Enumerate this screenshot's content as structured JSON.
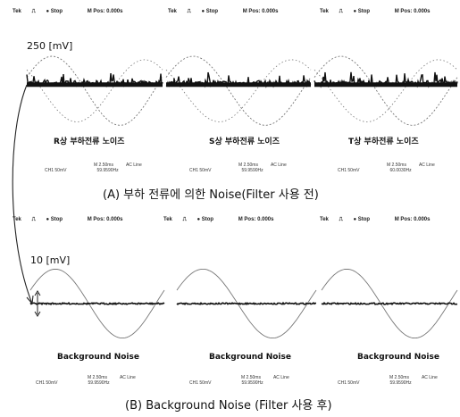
{
  "top": {
    "scale_label": "250 [mV]",
    "caption": "(A) 부하 전류에 의한 Noise(Filter 사용 전)",
    "panels": [
      {
        "header": {
          "tek": "Tek",
          "mode": "Stop",
          "pos": "M Pos: 0.000s"
        },
        "label": "R상 부하전류 노이즈",
        "footer": {
          "source": "CH1 50mV",
          "time": "M 2.50ms",
          "coupling": "AC Line",
          "extra": "59.9590Hz"
        }
      },
      {
        "header": {
          "tek": "Tek",
          "mode": "Stop",
          "pos": "M Pos: 0.000s"
        },
        "label": "S상 부하전류 노이즈",
        "footer": {
          "source": "CH1 50mV",
          "time": "M 2.50ms",
          "coupling": "AC Line",
          "extra": "59.9590Hz"
        }
      },
      {
        "header": {
          "tek": "Tek",
          "mode": "Stop",
          "pos": "M Pos: 0.000s"
        },
        "label": "T상 부하전류 노이즈",
        "footer": {
          "source": "CH1 50mV",
          "time": "M 2.50ms",
          "coupling": "AC Line",
          "extra": "60.0030Hz"
        }
      }
    ]
  },
  "bottom": {
    "scale_label": "10 [mV]",
    "caption": "(B) Background Noise (Filter 사용 후)",
    "panels": [
      {
        "header": {
          "tek": "Tek",
          "mode": "Stop",
          "pos": "M Pos: 0.000s"
        },
        "label": "Background Noise",
        "footer": {
          "source": "CH1 50mV",
          "time": "M 2.50ms",
          "coupling": "AC Line",
          "extra": "59.9590Hz"
        }
      },
      {
        "header": {
          "tek": "Tek",
          "mode": "Stop",
          "pos": "M Pos: 0.000s"
        },
        "label": "Background Noise",
        "footer": {
          "source": "CH1 50mV",
          "time": "M 2.50ms",
          "coupling": "AC Line",
          "extra": "59.9590Hz"
        }
      },
      {
        "header": {
          "tek": "Tek",
          "mode": "Stop",
          "pos": "M Pos: 0.000s"
        },
        "label": "Background Noise",
        "footer": {
          "source": "CH1 50mV",
          "time": "M 2.50ms",
          "coupling": "AC Line",
          "extra": "59.9590Hz"
        }
      }
    ]
  },
  "colors": {
    "trace": "#111111",
    "sine": "#777777",
    "background": "#ffffff"
  },
  "icons": {
    "arrow": "curved-arrow-icon",
    "trigger": "trigger-pulse-icon",
    "stop": "stop-dot-icon"
  }
}
